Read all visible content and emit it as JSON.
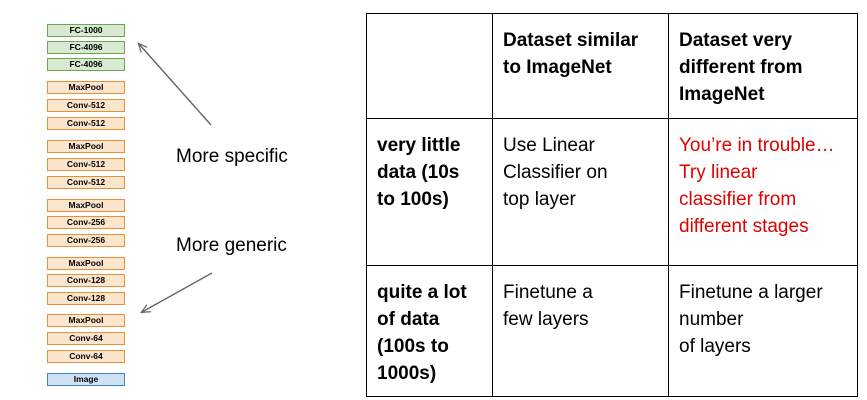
{
  "network": {
    "layers": [
      {
        "label": "FC-1000",
        "kind": "fc"
      },
      {
        "label": "FC-4096",
        "kind": "fc"
      },
      {
        "label": "FC-4096",
        "kind": "fc"
      },
      {
        "label": "MaxPool",
        "kind": "conv"
      },
      {
        "label": "Conv-512",
        "kind": "conv"
      },
      {
        "label": "Conv-512",
        "kind": "conv"
      },
      {
        "label": "MaxPool",
        "kind": "conv"
      },
      {
        "label": "Conv-512",
        "kind": "conv"
      },
      {
        "label": "Conv-512",
        "kind": "conv"
      },
      {
        "label": "MaxPool",
        "kind": "conv"
      },
      {
        "label": "Conv-256",
        "kind": "conv"
      },
      {
        "label": "Conv-256",
        "kind": "conv"
      },
      {
        "label": "MaxPool",
        "kind": "conv"
      },
      {
        "label": "Conv-128",
        "kind": "conv"
      },
      {
        "label": "Conv-128",
        "kind": "conv"
      },
      {
        "label": "MaxPool",
        "kind": "conv"
      },
      {
        "label": "Conv-64",
        "kind": "conv"
      },
      {
        "label": "Conv-64",
        "kind": "conv"
      },
      {
        "label": "Image",
        "kind": "img"
      }
    ]
  },
  "labels": {
    "more_specific": "More specific",
    "more_generic": "More generic"
  },
  "table": {
    "header": {
      "corner": "",
      "col1": "Dataset similar\nto ImageNet",
      "col2": "Dataset very\ndifferent from\nImageNet"
    },
    "row1": {
      "label": "very little\ndata (10s\nto 100s)",
      "similar": "Use Linear\nClassifier on\ntop layer",
      "different": "You’re in trouble…\nTry linear\nclassifier from\ndifferent stages"
    },
    "row2": {
      "label": "quite a lot\nof data\n(100s to\n1000s)",
      "similar": "Finetune a\nfew layers",
      "different": "Finetune a larger\nnumber\nof layers"
    }
  },
  "colors": {
    "fc_fill": "#d9ead3",
    "fc_border": "#6aa84f",
    "conv_fill": "#fce5cd",
    "conv_border": "#e69138",
    "image_fill": "#cfe2f3",
    "image_border": "#3d85c6",
    "warning_text": "#e00000"
  }
}
